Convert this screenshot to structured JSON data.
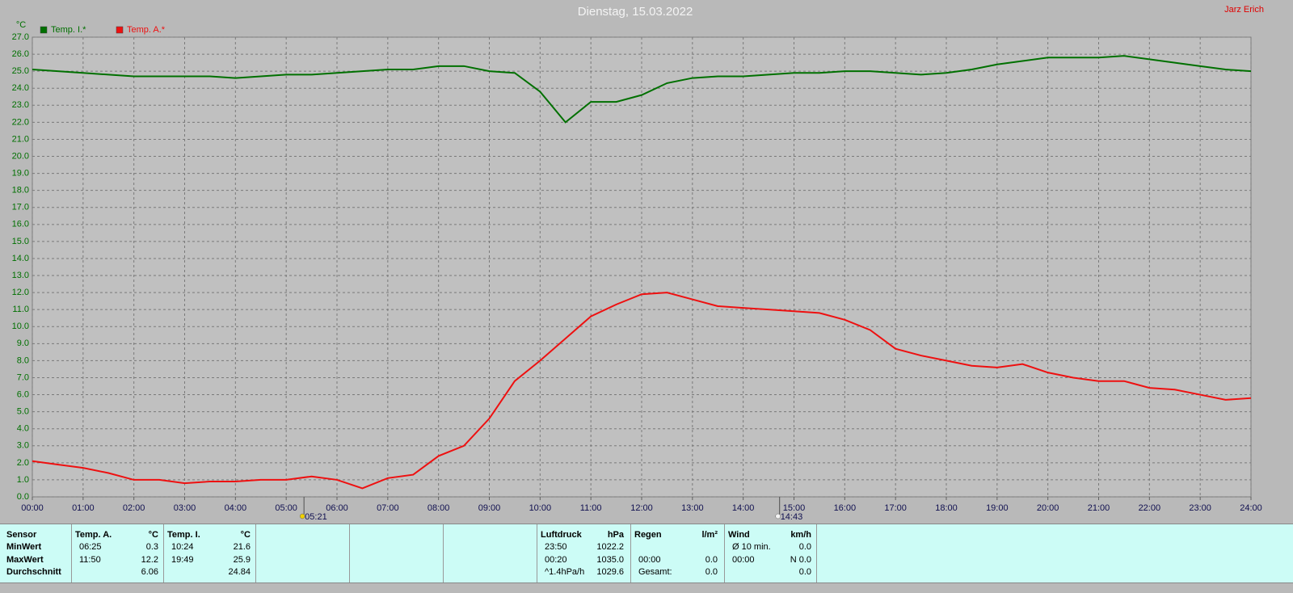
{
  "chart_data": {
    "type": "line",
    "title": "Dienstag, 15.03.2022",
    "author": "Jarz Erich",
    "y_unit": "°C",
    "x": [
      0,
      0.5,
      1,
      1.5,
      2,
      2.5,
      3,
      3.5,
      4,
      4.5,
      5,
      5.5,
      6,
      6.5,
      7,
      7.5,
      8,
      8.5,
      9,
      9.5,
      10,
      10.5,
      11,
      11.5,
      12,
      12.5,
      13,
      13.5,
      14,
      14.5,
      15,
      15.5,
      16,
      16.5,
      17,
      17.5,
      18,
      18.5,
      19,
      19.5,
      20,
      20.5,
      21,
      21.5,
      22,
      22.5,
      23,
      23.5,
      24
    ],
    "series": [
      {
        "name": "Temp. I.*",
        "color": "#007000",
        "values": [
          25.1,
          25.0,
          24.9,
          24.8,
          24.7,
          24.7,
          24.7,
          24.7,
          24.6,
          24.7,
          24.8,
          24.8,
          24.9,
          25.0,
          25.1,
          25.1,
          25.3,
          25.3,
          25.0,
          24.9,
          23.8,
          22.0,
          23.2,
          23.2,
          23.6,
          24.3,
          24.6,
          24.7,
          24.7,
          24.8,
          24.9,
          24.9,
          25.0,
          25.0,
          24.9,
          24.8,
          24.9,
          25.1,
          25.4,
          25.6,
          25.8,
          25.8,
          25.8,
          25.9,
          25.7,
          25.5,
          25.3,
          25.1,
          25.0
        ]
      },
      {
        "name": "Temp. A.*",
        "color": "#ee1010",
        "values": [
          2.1,
          1.9,
          1.7,
          1.4,
          1.0,
          1.0,
          0.8,
          0.9,
          0.9,
          1.0,
          1.0,
          1.2,
          1.0,
          0.5,
          1.1,
          1.3,
          2.4,
          3.0,
          4.6,
          6.8,
          8.0,
          9.3,
          10.6,
          11.3,
          11.9,
          12.0,
          11.6,
          11.2,
          11.1,
          11.0,
          10.9,
          10.8,
          10.4,
          9.8,
          8.7,
          8.3,
          8.0,
          7.7,
          7.6,
          7.8,
          7.3,
          7.0,
          6.8,
          6.8,
          6.4,
          6.3,
          6.0,
          5.7,
          5.8
        ]
      }
    ],
    "xlim": [
      0,
      24
    ],
    "xticks": [
      {
        "value": 0,
        "label": "00:00"
      },
      {
        "value": 1,
        "label": "01:00"
      },
      {
        "value": 2,
        "label": "02:00"
      },
      {
        "value": 3,
        "label": "03:00"
      },
      {
        "value": 4,
        "label": "04:00"
      },
      {
        "value": 5,
        "label": "05:00"
      },
      {
        "value": 6,
        "label": "06:00"
      },
      {
        "value": 7,
        "label": "07:00"
      },
      {
        "value": 8,
        "label": "08:00"
      },
      {
        "value": 9,
        "label": "09:00"
      },
      {
        "value": 10,
        "label": "10:00"
      },
      {
        "value": 11,
        "label": "11:00"
      },
      {
        "value": 12,
        "label": "12:00"
      },
      {
        "value": 13,
        "label": "13:00"
      },
      {
        "value": 14,
        "label": "14:00"
      },
      {
        "value": 15,
        "label": "15:00"
      },
      {
        "value": 16,
        "label": "16:00"
      },
      {
        "value": 17,
        "label": "17:00"
      },
      {
        "value": 18,
        "label": "18:00"
      },
      {
        "value": 19,
        "label": "19:00"
      },
      {
        "value": 20,
        "label": "20:00"
      },
      {
        "value": 21,
        "label": "21:00"
      },
      {
        "value": 22,
        "label": "22:00"
      },
      {
        "value": 23,
        "label": "23:00"
      },
      {
        "value": 24,
        "label": "24:00"
      }
    ],
    "ylim": [
      0,
      27
    ],
    "yticks": [
      {
        "value": 0,
        "label": "0.0"
      },
      {
        "value": 1,
        "label": "1.0"
      },
      {
        "value": 2,
        "label": "2.0"
      },
      {
        "value": 3,
        "label": "3.0"
      },
      {
        "value": 4,
        "label": "4.0"
      },
      {
        "value": 5,
        "label": "5.0"
      },
      {
        "value": 6,
        "label": "6.0"
      },
      {
        "value": 7,
        "label": "7.0"
      },
      {
        "value": 8,
        "label": "8.0"
      },
      {
        "value": 9,
        "label": "9.0"
      },
      {
        "value": 10,
        "label": "10.0"
      },
      {
        "value": 11,
        "label": "11.0"
      },
      {
        "value": 12,
        "label": "12.0"
      },
      {
        "value": 13,
        "label": "13.0"
      },
      {
        "value": 14,
        "label": "14.0"
      },
      {
        "value": 15,
        "label": "15.0"
      },
      {
        "value": 16,
        "label": "16.0"
      },
      {
        "value": 17,
        "label": "17.0"
      },
      {
        "value": 18,
        "label": "18.0"
      },
      {
        "value": 19,
        "label": "19.0"
      },
      {
        "value": 20,
        "label": "20.0"
      },
      {
        "value": 21,
        "label": "21.0"
      },
      {
        "value": 22,
        "label": "22.0"
      },
      {
        "value": 23,
        "label": "23.0"
      },
      {
        "value": 24,
        "label": "24.0"
      },
      {
        "value": 25,
        "label": "25.0"
      },
      {
        "value": 26,
        "label": "26.0"
      },
      {
        "value": 27,
        "label": "27.0"
      }
    ],
    "grid": true,
    "annotations": [
      {
        "x": 5.35,
        "label": "05:21"
      },
      {
        "x": 14.716666666666667,
        "label": "14:43"
      }
    ]
  },
  "table": {
    "row_labels": {
      "header": "Sensor",
      "rows": [
        "MinWert",
        "MaxWert",
        "Durchschnitt"
      ]
    },
    "blocks": [
      {
        "name": "Temp. A.",
        "unit": "°C",
        "rows": [
          {
            "time": "06:25",
            "value": "0.3"
          },
          {
            "time": "11:50",
            "value": "12.2"
          },
          {
            "value": "6.06"
          }
        ]
      },
      {
        "name": "Temp. I.",
        "unit": "°C",
        "rows": [
          {
            "time": "10:24",
            "value": "21.6"
          },
          {
            "time": "19:49",
            "value": "25.9"
          },
          {
            "value": "24.84"
          }
        ]
      },
      {
        "name": "Luftdruck",
        "unit": "hPa",
        "rows": [
          {
            "time": "23:50",
            "value": "1022.2"
          },
          {
            "time": "00:20",
            "value": "1035.0"
          },
          {
            "time": "^1.4hPa/h",
            "value": "1029.6"
          }
        ]
      },
      {
        "name": "Regen",
        "unit": "l/m²",
        "rows": [
          null,
          {
            "time": "00:00",
            "value": "0.0"
          },
          {
            "time": "Gesamt:",
            "value": "0.0"
          }
        ]
      },
      {
        "name": "Wind",
        "unit": "km/h",
        "rows": [
          {
            "time": "Ø 10 min.",
            "value": "0.0"
          },
          {
            "time": "00:00",
            "value": "N 0.0"
          },
          {
            "value": "0.0"
          }
        ]
      }
    ]
  }
}
